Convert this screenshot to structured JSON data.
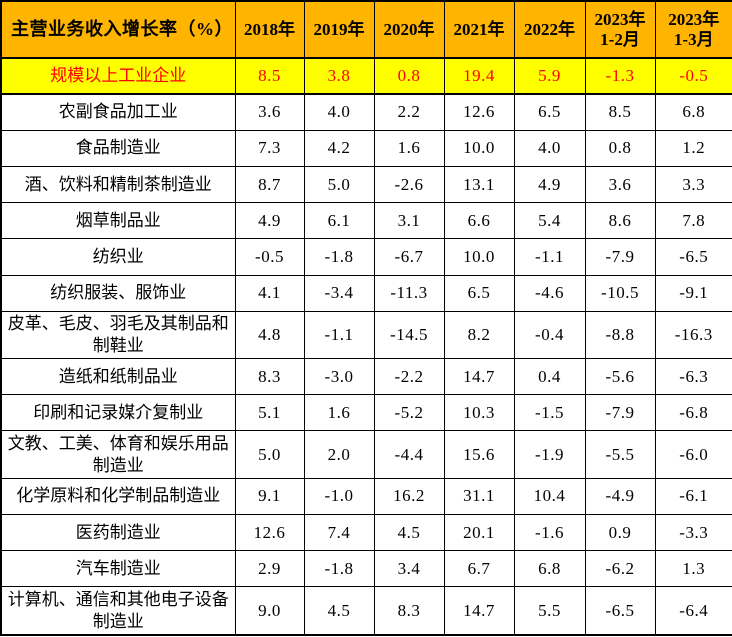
{
  "colors": {
    "header_bg": "#FFB400",
    "highlight_bg": "#FFFF00",
    "highlight_text": "#FF0000",
    "body_text": "#000000",
    "border": "#000000",
    "page_bg": "#FFFFFF"
  },
  "chart_data": {
    "type": "table",
    "title": "主营业务收入增长率（%）",
    "columns": [
      "2018年",
      "2019年",
      "2020年",
      "2021年",
      "2022年",
      "2023年\n1-2月",
      "2023年\n1-3月"
    ],
    "rows": [
      {
        "name": "规模以上工业企业",
        "highlight": true,
        "values": [
          "8.5",
          "3.8",
          "0.8",
          "19.4",
          "5.9",
          "-1.3",
          "-0.5"
        ]
      },
      {
        "name": "农副食品加工业",
        "highlight": false,
        "values": [
          "3.6",
          "4.0",
          "2.2",
          "12.6",
          "6.5",
          "8.5",
          "6.8"
        ]
      },
      {
        "name": "食品制造业",
        "highlight": false,
        "values": [
          "7.3",
          "4.2",
          "1.6",
          "10.0",
          "4.0",
          "0.8",
          "1.2"
        ]
      },
      {
        "name": "酒、饮料和精制茶制造业",
        "highlight": false,
        "values": [
          "8.7",
          "5.0",
          "-2.6",
          "13.1",
          "4.9",
          "3.6",
          "3.3"
        ]
      },
      {
        "name": "烟草制品业",
        "highlight": false,
        "values": [
          "4.9",
          "6.1",
          "3.1",
          "6.6",
          "5.4",
          "8.6",
          "7.8"
        ]
      },
      {
        "name": "纺织业",
        "highlight": false,
        "values": [
          "-0.5",
          "-1.8",
          "-6.7",
          "10.0",
          "-1.1",
          "-7.9",
          "-6.5"
        ]
      },
      {
        "name": "纺织服装、服饰业",
        "highlight": false,
        "values": [
          "4.1",
          "-3.4",
          "-11.3",
          "6.5",
          "-4.6",
          "-10.5",
          "-9.1"
        ]
      },
      {
        "name": "皮革、毛皮、羽毛及其制品和制鞋业",
        "highlight": false,
        "values": [
          "4.8",
          "-1.1",
          "-14.5",
          "8.2",
          "-0.4",
          "-8.8",
          "-16.3"
        ]
      },
      {
        "name": "造纸和纸制品业",
        "highlight": false,
        "values": [
          "8.3",
          "-3.0",
          "-2.2",
          "14.7",
          "0.4",
          "-5.6",
          "-6.3"
        ]
      },
      {
        "name": "印刷和记录媒介复制业",
        "highlight": false,
        "values": [
          "5.1",
          "1.6",
          "-5.2",
          "10.3",
          "-1.5",
          "-7.9",
          "-6.8"
        ]
      },
      {
        "name": "文教、工美、体育和娱乐用品制造业",
        "highlight": false,
        "values": [
          "5.0",
          "2.0",
          "-4.4",
          "15.6",
          "-1.9",
          "-5.5",
          "-6.0"
        ]
      },
      {
        "name": "化学原料和化学制品制造业",
        "highlight": false,
        "values": [
          "9.1",
          "-1.0",
          "16.2",
          "31.1",
          "10.4",
          "-4.9",
          "-6.1"
        ]
      },
      {
        "name": "医药制造业",
        "highlight": false,
        "values": [
          "12.6",
          "7.4",
          "4.5",
          "20.1",
          "-1.6",
          "0.9",
          "-3.3"
        ]
      },
      {
        "name": "汽车制造业",
        "highlight": false,
        "values": [
          "2.9",
          "-1.8",
          "3.4",
          "6.7",
          "6.8",
          "-6.2",
          "1.3"
        ]
      },
      {
        "name": "计算机、通信和其他电子设备制造业",
        "highlight": false,
        "values": [
          "9.0",
          "4.5",
          "8.3",
          "14.7",
          "5.5",
          "-6.5",
          "-6.4"
        ]
      }
    ]
  }
}
